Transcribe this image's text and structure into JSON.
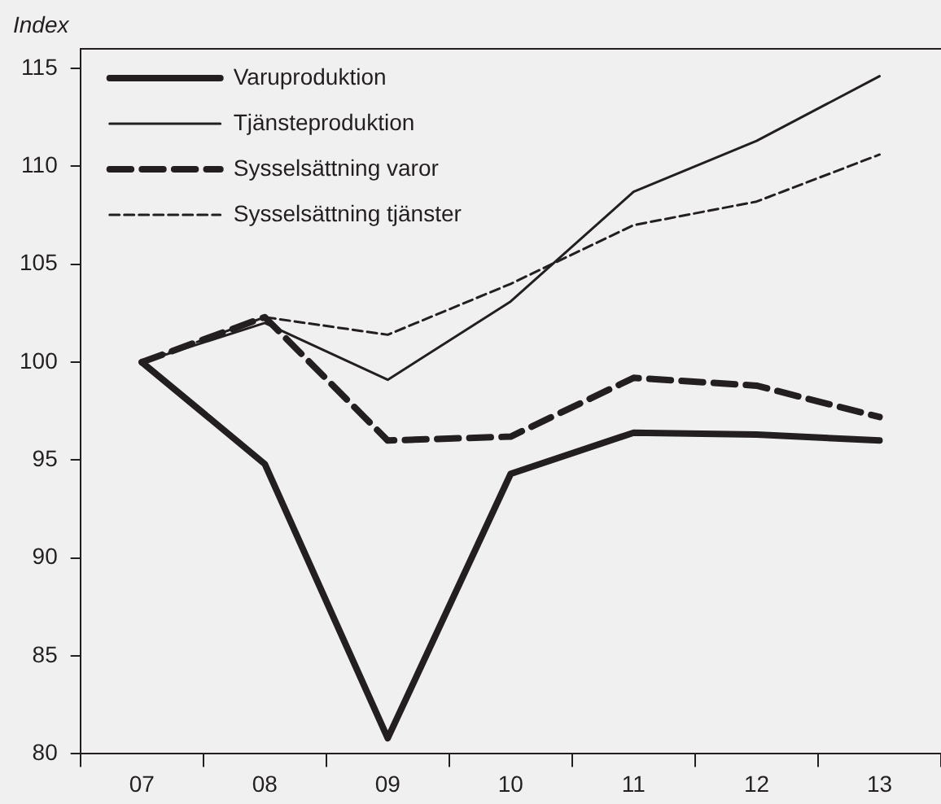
{
  "chart_data": {
    "type": "line",
    "ylabel": "Index",
    "categories": [
      "07",
      "08",
      "09",
      "10",
      "11",
      "12",
      "13"
    ],
    "series": [
      {
        "name": "Varuproduktion",
        "color": "#231f20",
        "line_style": "solid",
        "values": [
          100,
          94.8,
          80.8,
          94.3,
          96.4,
          96.3,
          96.0
        ]
      },
      {
        "name": "Tjänsteproduktion",
        "color": "#231f20",
        "line_style": "solid",
        "values": [
          100,
          102.0,
          99.1,
          103.1,
          108.7,
          111.3,
          114.6
        ]
      },
      {
        "name": "Sysselsättning varor",
        "color": "#231f20",
        "line_style": "dashed",
        "values": [
          100,
          102.3,
          96.0,
          96.2,
          99.2,
          98.8,
          97.2
        ]
      },
      {
        "name": "Sysselsättning tjänster",
        "color": "#231f20",
        "line_style": "dashed",
        "values": [
          100,
          102.3,
          101.4,
          104.0,
          107.0,
          108.2,
          110.6
        ]
      }
    ],
    "ylim": [
      80,
      116
    ],
    "yticks": [
      80,
      85,
      90,
      95,
      100,
      105,
      110,
      115
    ],
    "grid": false,
    "legend": "top left",
    "marker": "none"
  }
}
